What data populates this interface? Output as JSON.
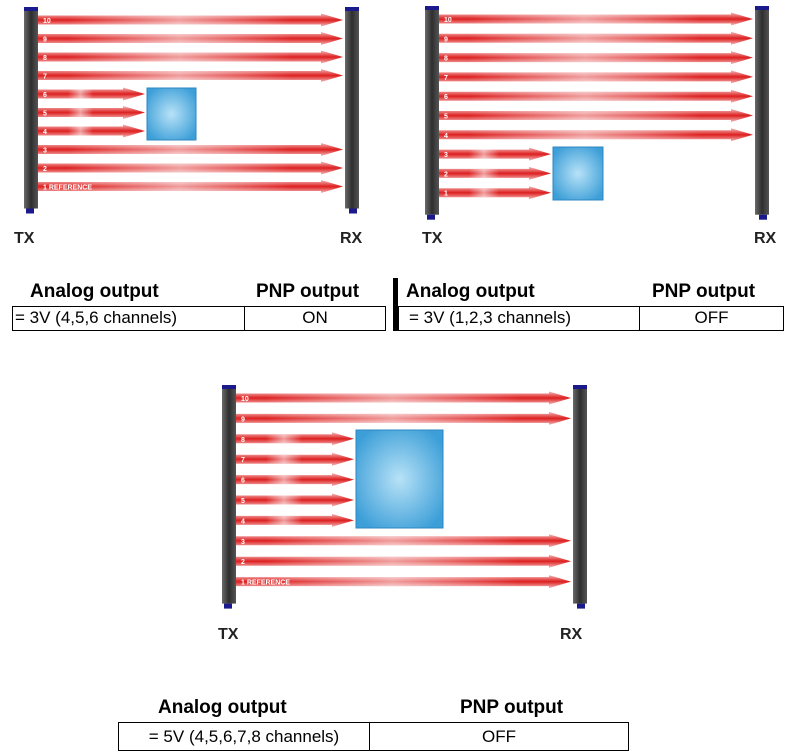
{
  "diagrams": [
    {
      "tx_label": "TX",
      "rx_label": "RX",
      "beam_labels": [
        "10",
        "9",
        "8",
        "7",
        "6",
        "5",
        "4",
        "3",
        "2",
        "1 REFERENCE"
      ],
      "blocked_channels": [
        "6",
        "5",
        "4"
      ],
      "table": {
        "header_analog": "Analog output",
        "header_pnp": "PNP output",
        "analog_value": "= 3V (4,5,6 channels)",
        "pnp_value": "ON"
      }
    },
    {
      "tx_label": "TX",
      "rx_label": "RX",
      "beam_labels": [
        "10",
        "9",
        "8",
        "7",
        "6",
        "5",
        "4",
        "3",
        "2",
        "1"
      ],
      "blocked_channels": [
        "3",
        "2",
        "1"
      ],
      "table": {
        "header_analog": "Analog output",
        "header_pnp": "PNP output",
        "analog_value": "= 3V (1,2,3 channels)",
        "pnp_value": "OFF"
      }
    },
    {
      "tx_label": "TX",
      "rx_label": "RX",
      "beam_labels": [
        "10",
        "9",
        "8",
        "7",
        "6",
        "5",
        "4",
        "3",
        "2",
        "1 REFERENCE"
      ],
      "blocked_channels": [
        "8",
        "7",
        "6",
        "5",
        "4"
      ],
      "table": {
        "header_analog": "Analog output",
        "header_pnp": "PNP output",
        "analog_value": "= 5V (4,5,6,7,8 channels)",
        "pnp_value": "OFF"
      }
    }
  ],
  "colors": {
    "beam": "#e02020",
    "bar": "#3a3a3a",
    "cap": "#1a1a8c",
    "object": "#5ab4e6"
  }
}
